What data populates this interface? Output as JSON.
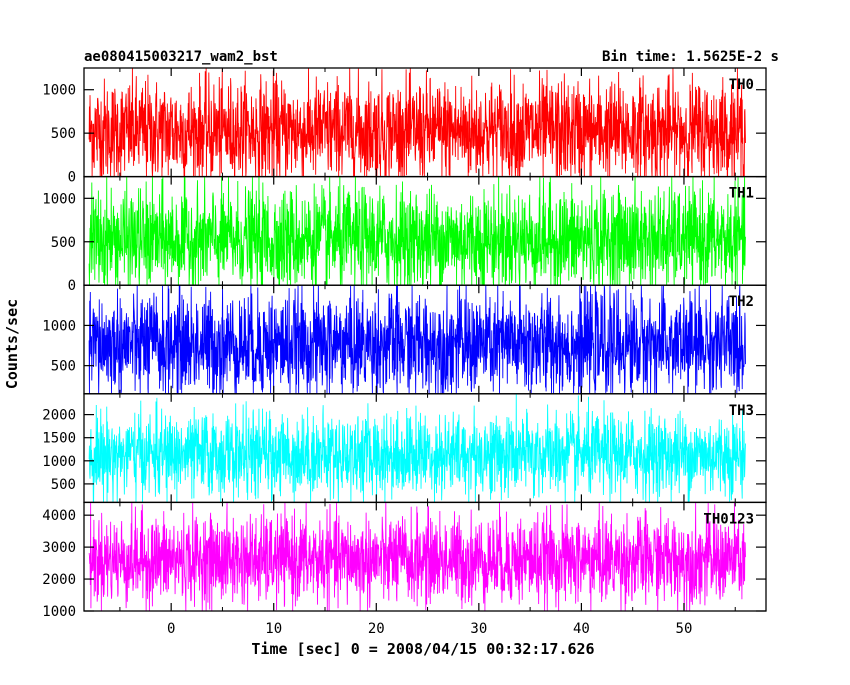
{
  "header": {
    "source": "ae080415003217_wam2_bst",
    "bin_time": "Bin time: 1.5625E-2 s"
  },
  "xlabel": "Time [sec] 0 = 2008/04/15 00:32:17.626",
  "ylabel": "Counts/sec",
  "chart_data": {
    "type": "line",
    "xlim": [
      -8.5,
      58
    ],
    "x_ticks": [
      0,
      10,
      20,
      30,
      40,
      50
    ],
    "x_range": [
      -8.0,
      56.0
    ],
    "grid": false,
    "panels": [
      {
        "name": "TH0",
        "color": "#ff0000",
        "ylim": [
          0,
          1250
        ],
        "y_ticks": [
          0,
          500,
          1000
        ],
        "y_min": 0,
        "y_max": 1250,
        "y_mean": 520,
        "y_spread": 300
      },
      {
        "name": "TH1",
        "color": "#00ff00",
        "ylim": [
          0,
          1250
        ],
        "y_ticks": [
          0,
          500,
          1000
        ],
        "y_min": 0,
        "y_max": 1250,
        "y_mean": 520,
        "y_spread": 300
      },
      {
        "name": "TH2",
        "color": "#0000ff",
        "ylim": [
          150,
          1500
        ],
        "y_ticks": [
          500,
          1000
        ],
        "y_min": 150,
        "y_max": 1500,
        "y_mean": 760,
        "y_spread": 330
      },
      {
        "name": "TH3",
        "color": "#00ffff",
        "ylim": [
          100,
          2450
        ],
        "y_ticks": [
          500,
          1000,
          1500,
          2000
        ],
        "y_min": 100,
        "y_max": 2450,
        "y_mean": 1130,
        "y_spread": 450
      },
      {
        "name": "TH0123",
        "color": "#ff00ff",
        "ylim": [
          1000,
          4400
        ],
        "y_ticks": [
          1000,
          2000,
          3000,
          4000
        ],
        "y_min": 1000,
        "y_max": 4400,
        "y_mean": 2600,
        "y_spread": 700
      }
    ]
  }
}
